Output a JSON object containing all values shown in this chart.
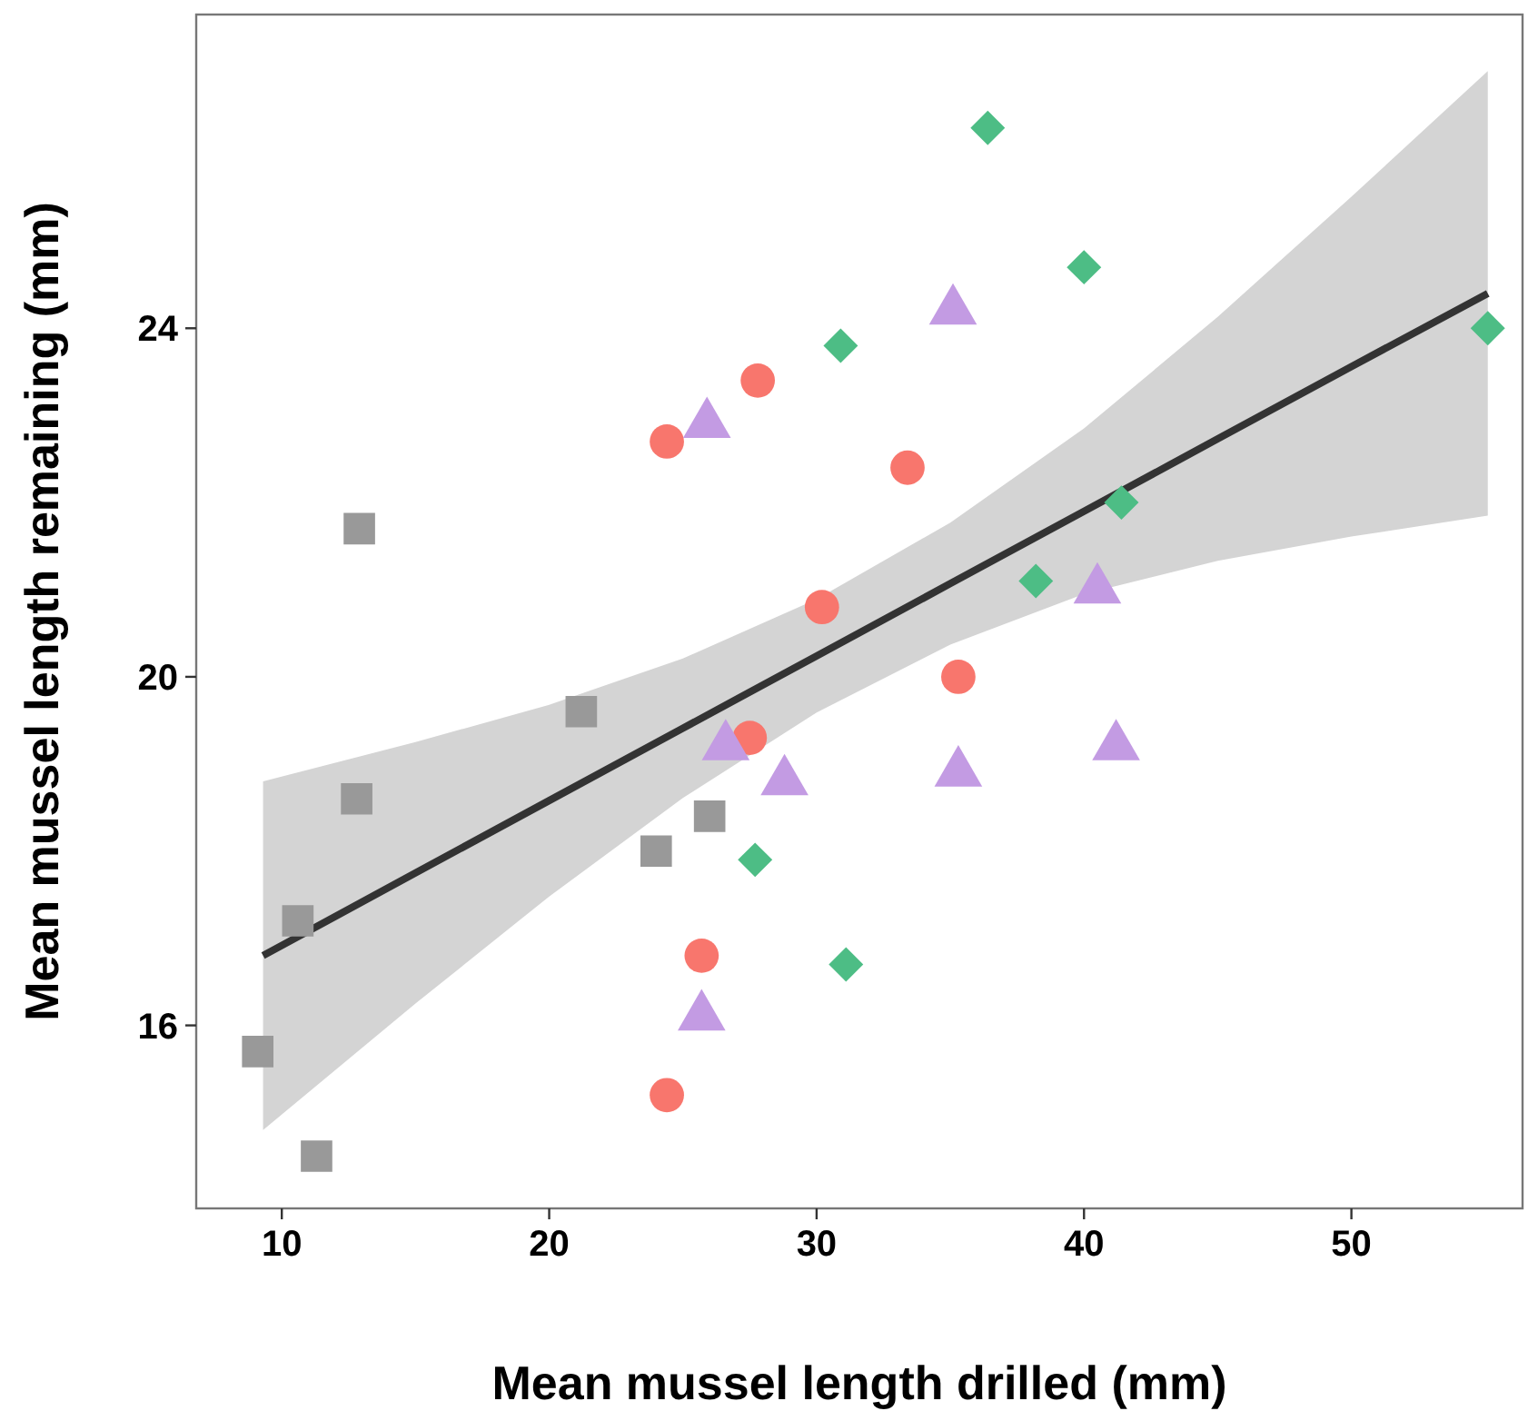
{
  "chart_data": {
    "type": "scatter",
    "xlabel": "Mean mussel length drilled (mm)",
    "ylabel": "Mean mussel length remaining (mm)",
    "xlim": [
      6.8,
      56.4
    ],
    "ylim": [
      13.9,
      27.6
    ],
    "xticks": [
      10,
      20,
      30,
      40,
      50
    ],
    "yticks": [
      16,
      20,
      24
    ],
    "grid": false,
    "series": [
      {
        "marker": "square",
        "color": "#999999",
        "x": [
          9.1,
          12.9,
          12.8,
          10.6,
          11.3,
          21.2,
          24.0,
          26.0
        ],
        "values": [
          15.7,
          21.7,
          18.6,
          17.2,
          14.5,
          19.6,
          18.0,
          18.4
        ]
      },
      {
        "marker": "circle",
        "color": "#f8766d",
        "x": [
          24.4,
          27.8,
          33.4,
          30.2,
          35.3,
          27.5,
          25.7,
          24.4
        ],
        "values": [
          22.7,
          23.4,
          22.4,
          20.8,
          20.0,
          19.3,
          16.8,
          15.2
        ]
      },
      {
        "marker": "triangle",
        "color": "#c39be3",
        "x": [
          25.9,
          35.1,
          26.6,
          28.8,
          35.3,
          40.5,
          41.2,
          25.7
        ],
        "values": [
          22.9,
          24.2,
          19.2,
          18.8,
          18.9,
          21.0,
          19.2,
          16.1
        ]
      },
      {
        "marker": "diamond",
        "color": "#4dbd85",
        "x": [
          36.4,
          40.0,
          30.9,
          55.1,
          41.4,
          38.2,
          27.7,
          31.1
        ],
        "values": [
          26.3,
          24.7,
          23.8,
          24.0,
          22.0,
          21.1,
          17.9,
          16.7
        ]
      },
      {
        "type": "line",
        "marker": "none",
        "line_style": "solid",
        "color": "#333333",
        "x": [
          9.3,
          15,
          20,
          25,
          30,
          35,
          40,
          45,
          50,
          55.1
        ],
        "values": [
          16.8,
          17.75,
          18.58,
          19.41,
          20.24,
          21.07,
          21.9,
          22.73,
          23.56,
          24.4
        ],
        "lower": [
          14.8,
          16.25,
          17.48,
          18.61,
          19.59,
          20.37,
          20.95,
          21.33,
          21.61,
          21.85
        ],
        "upper": [
          18.8,
          19.25,
          19.68,
          20.21,
          20.89,
          21.77,
          22.85,
          24.13,
          25.51,
          26.95
        ]
      }
    ]
  }
}
